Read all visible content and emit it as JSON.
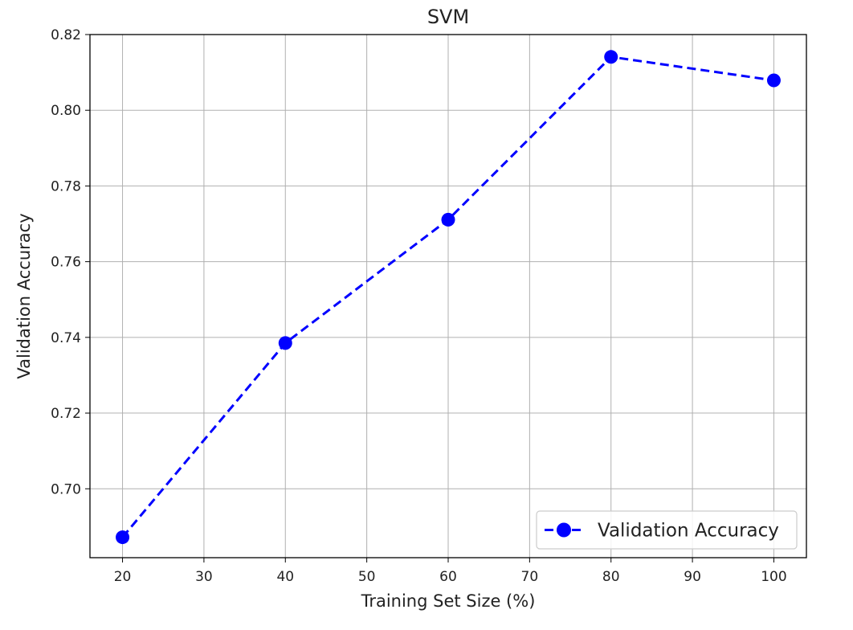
{
  "chart_data": {
    "type": "line",
    "title": "SVM",
    "xlabel": "Training Set Size (%)",
    "ylabel": "Validation Accuracy",
    "xlim": [
      16,
      104
    ],
    "ylim": [
      0.6818,
      0.82
    ],
    "xticks": [
      20,
      30,
      40,
      50,
      60,
      70,
      80,
      90,
      100
    ],
    "yticks": [
      0.7,
      0.72,
      0.74,
      0.76,
      0.78,
      0.8,
      0.82
    ],
    "grid": true,
    "legend_position": "lower-right",
    "series": [
      {
        "name": "Validation Accuracy",
        "color": "#0000ff",
        "line_style": "dashed",
        "marker": "circle",
        "x": [
          20,
          40,
          60,
          80,
          100
        ],
        "y": [
          0.6872,
          0.7385,
          0.7711,
          0.8141,
          0.8079
        ]
      }
    ]
  }
}
